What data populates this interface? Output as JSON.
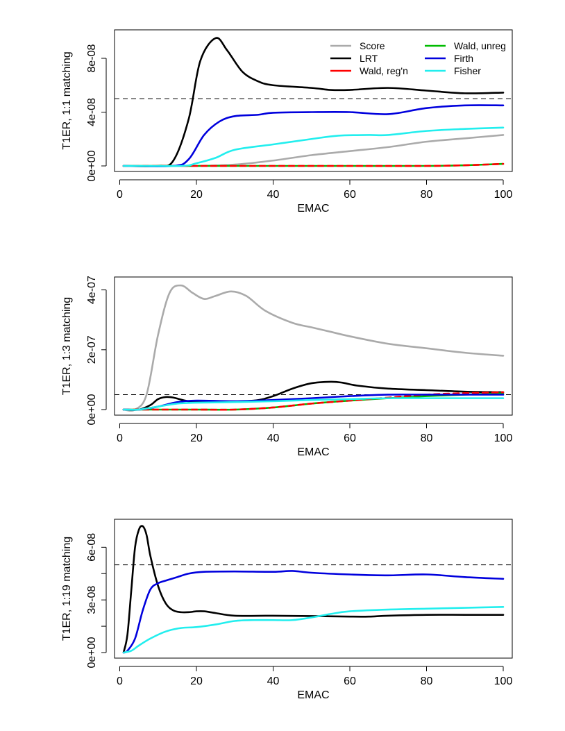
{
  "chart_data": [
    {
      "type": "line",
      "title": "",
      "xlabel": "EMAC",
      "ylabel": "T1ER, 1:1 matching",
      "xlim": [
        1,
        100
      ],
      "ylim": [
        0,
        9.6e-08
      ],
      "x_ticks": [
        0,
        20,
        40,
        60,
        80,
        100
      ],
      "x_tick_labels": [
        "0",
        "20",
        "40",
        "60",
        "80",
        "100"
      ],
      "y_ticks": [
        0,
        4e-08,
        8e-08
      ],
      "y_tick_labels": [
        "0e+00",
        "4e-08",
        "8e-08"
      ],
      "reference_line": 5e-08,
      "legend": {
        "position": "top-right",
        "entries": [
          {
            "label": "Score",
            "color": "#aaaaaa"
          },
          {
            "label": "LRT",
            "color": "#000000"
          },
          {
            "label": "Wald, reg'n",
            "color": "#ff0000"
          },
          {
            "label": "Wald, unreg",
            "color": "#00bb00"
          },
          {
            "label": "Firth",
            "color": "#0000dd"
          },
          {
            "label": "Fisher",
            "color": "#22eeee"
          }
        ]
      },
      "series": [
        {
          "name": "Score",
          "color": "#aaaaaa",
          "x": [
            1,
            10,
            20,
            30,
            40,
            50,
            60,
            70,
            80,
            90,
            100
          ],
          "y": [
            0,
            0,
            0,
            1e-09,
            4e-09,
            8e-09,
            1.1e-08,
            1.4e-08,
            1.8e-08,
            2.05e-08,
            2.3e-08
          ]
        },
        {
          "name": "LRT",
          "color": "#000000",
          "x": [
            1,
            10,
            14,
            18,
            21,
            25,
            28,
            32,
            36,
            40,
            50,
            55,
            60,
            70,
            80,
            90,
            100
          ],
          "y": [
            0,
            0,
            4e-09,
            3.5e-08,
            7.8e-08,
            9.5e-08,
            8.6e-08,
            7e-08,
            6.3e-08,
            6e-08,
            5.8e-08,
            5.65e-08,
            5.65e-08,
            5.8e-08,
            5.6e-08,
            5.4e-08,
            5.45e-08
          ]
        },
        {
          "name": "Wald, unreg",
          "color": "#00bb00",
          "dashed": false,
          "x": [
            1,
            20,
            40,
            60,
            80,
            90,
            100
          ],
          "y": [
            0,
            0,
            0,
            0,
            0,
            5e-10,
            1.5e-09
          ]
        },
        {
          "name": "Wald, reg'n",
          "color": "#ff0000",
          "dashed": true,
          "x": [
            1,
            20,
            40,
            60,
            80,
            90,
            100
          ],
          "y": [
            0,
            0,
            0,
            0,
            0,
            5e-10,
            1.5e-09
          ]
        },
        {
          "name": "Firth",
          "color": "#0000dd",
          "x": [
            1,
            14,
            18,
            22,
            26,
            30,
            36,
            40,
            50,
            60,
            70,
            80,
            90,
            100
          ],
          "y": [
            0,
            0,
            5e-09,
            2.3e-08,
            3.3e-08,
            3.7e-08,
            3.8e-08,
            3.95e-08,
            4e-08,
            4e-08,
            3.85e-08,
            4.3e-08,
            4.5e-08,
            4.5e-08
          ]
        },
        {
          "name": "Fisher",
          "color": "#22eeee",
          "x": [
            1,
            16,
            20,
            25,
            30,
            40,
            50,
            57,
            65,
            70,
            80,
            90,
            100
          ],
          "y": [
            0,
            0,
            2e-09,
            6e-09,
            1.2e-08,
            1.6e-08,
            2e-08,
            2.25e-08,
            2.3e-08,
            2.3e-08,
            2.6e-08,
            2.75e-08,
            2.85e-08
          ]
        }
      ]
    },
    {
      "type": "line",
      "title": "",
      "xlabel": "EMAC",
      "ylabel": "T1ER, 1:3 matching",
      "xlim": [
        1,
        100
      ],
      "ylim": [
        0,
        4.2e-07
      ],
      "x_ticks": [
        0,
        20,
        40,
        60,
        80,
        100
      ],
      "x_tick_labels": [
        "0",
        "20",
        "40",
        "60",
        "80",
        "100"
      ],
      "y_ticks": [
        0,
        2e-07,
        4e-07
      ],
      "y_tick_labels": [
        "0e+00",
        "2e-07",
        "4e-07"
      ],
      "reference_line": 5e-08,
      "series": [
        {
          "name": "Score",
          "color": "#aaaaaa",
          "x": [
            1,
            4,
            7,
            10,
            13,
            16,
            19,
            22,
            25,
            29,
            33,
            38,
            45,
            50,
            55,
            60,
            70,
            80,
            90,
            100
          ],
          "y": [
            0,
            0,
            5e-08,
            2.5e-07,
            3.9e-07,
            4.15e-07,
            3.9e-07,
            3.7e-07,
            3.8e-07,
            3.95e-07,
            3.8e-07,
            3.3e-07,
            2.9e-07,
            2.75e-07,
            2.6e-07,
            2.45e-07,
            2.2e-07,
            2.05e-07,
            1.9e-07,
            1.8e-07
          ]
        },
        {
          "name": "LRT",
          "color": "#000000",
          "x": [
            1,
            5,
            8,
            10,
            12,
            14,
            17,
            20,
            25,
            35,
            40,
            45,
            50,
            55,
            58,
            62,
            70,
            80,
            90,
            100
          ],
          "y": [
            0,
            0,
            1.5e-08,
            3.5e-08,
            4.2e-08,
            4e-08,
            3e-08,
            2.5e-08,
            2.5e-08,
            3e-08,
            4.5e-08,
            7e-08,
            8.8e-08,
            9.3e-08,
            9e-08,
            8e-08,
            7e-08,
            6.5e-08,
            6e-08,
            5.8e-08
          ]
        },
        {
          "name": "Wald, unreg",
          "color": "#00bb00",
          "dashed": false,
          "x": [
            1,
            10,
            20,
            30,
            40,
            50,
            60,
            70,
            80,
            90,
            100
          ],
          "y": [
            0,
            0,
            0,
            0,
            7e-09,
            2e-08,
            3e-08,
            3.8e-08,
            4.5e-08,
            5e-08,
            5.5e-08
          ]
        },
        {
          "name": "Wald, reg'n",
          "color": "#ff0000",
          "dashed": true,
          "x": [
            1,
            10,
            20,
            30,
            40,
            50,
            60,
            70,
            80,
            90,
            100
          ],
          "y": [
            0,
            0,
            0,
            0,
            7e-09,
            2e-08,
            3e-08,
            4e-08,
            5e-08,
            5.5e-08,
            5.8e-08
          ]
        },
        {
          "name": "Firth",
          "color": "#0000dd",
          "x": [
            1,
            5,
            10,
            15,
            20,
            30,
            40,
            50,
            60,
            70,
            80,
            90,
            100
          ],
          "y": [
            0,
            0,
            1e-08,
            2.5e-08,
            3e-08,
            2.8e-08,
            3.2e-08,
            3.8e-08,
            4.5e-08,
            5e-08,
            5e-08,
            5e-08,
            5e-08
          ]
        },
        {
          "name": "Fisher",
          "color": "#22eeee",
          "x": [
            1,
            5,
            10,
            15,
            20,
            30,
            40,
            50,
            60,
            70,
            80,
            90,
            100
          ],
          "y": [
            0,
            0,
            1e-08,
            2e-08,
            2.3e-08,
            2.5e-08,
            2.8e-08,
            3.2e-08,
            3.5e-08,
            3.8e-08,
            3.8e-08,
            3.8e-08,
            3.8e-08
          ]
        }
      ]
    },
    {
      "type": "line",
      "title": "",
      "xlabel": "EMAC",
      "ylabel": "T1ER, 1:19 matching",
      "xlim": [
        1,
        100
      ],
      "ylim": [
        0,
        7.2e-08
      ],
      "x_ticks": [
        0,
        20,
        40,
        60,
        80,
        100
      ],
      "x_tick_labels": [
        "0",
        "20",
        "40",
        "60",
        "80",
        "100"
      ],
      "y_ticks": [
        0,
        1.5e-08,
        3e-08,
        4.5e-08,
        6e-08
      ],
      "y_tick_labels": [
        "0e+00",
        "",
        "3e-08",
        "",
        "6e-08"
      ],
      "reference_line": 5e-08,
      "series": [
        {
          "name": "LRT",
          "color": "#000000",
          "x": [
            1,
            2,
            3,
            4,
            5,
            6,
            7,
            8,
            10,
            12,
            14,
            16,
            18,
            20,
            22,
            25,
            30,
            40,
            50,
            60,
            65,
            70,
            80,
            90,
            100
          ],
          "y": [
            0,
            1e-08,
            3.5e-08,
            6e-08,
            7e-08,
            7.2e-08,
            6.7e-08,
            5.5e-08,
            3.8e-08,
            2.8e-08,
            2.4e-08,
            2.3e-08,
            2.3e-08,
            2.35e-08,
            2.35e-08,
            2.25e-08,
            2.1e-08,
            2.1e-08,
            2.08e-08,
            2.05e-08,
            2.05e-08,
            2.1e-08,
            2.15e-08,
            2.15e-08,
            2.15e-08
          ]
        },
        {
          "name": "Firth",
          "color": "#0000dd",
          "x": [
            1,
            2,
            4,
            6,
            8,
            10,
            12,
            15,
            18,
            22,
            30,
            40,
            45,
            50,
            60,
            70,
            80,
            90,
            100
          ],
          "y": [
            0,
            1e-09,
            8e-09,
            2.4e-08,
            3.6e-08,
            3.95e-08,
            4.1e-08,
            4.3e-08,
            4.5e-08,
            4.6e-08,
            4.62e-08,
            4.6e-08,
            4.65e-08,
            4.55e-08,
            4.45e-08,
            4.4e-08,
            4.45e-08,
            4.3e-08,
            4.2e-08
          ]
        },
        {
          "name": "Fisher",
          "color": "#22eeee",
          "x": [
            1,
            3,
            5,
            8,
            12,
            16,
            20,
            25,
            30,
            35,
            40,
            45,
            50,
            55,
            60,
            70,
            80,
            90,
            100
          ],
          "y": [
            0,
            1e-09,
            4e-09,
            8e-09,
            1.2e-08,
            1.4e-08,
            1.45e-08,
            1.6e-08,
            1.8e-08,
            1.85e-08,
            1.85e-08,
            1.85e-08,
            2e-08,
            2.2e-08,
            2.35e-08,
            2.45e-08,
            2.5e-08,
            2.55e-08,
            2.6e-08
          ]
        }
      ]
    }
  ]
}
